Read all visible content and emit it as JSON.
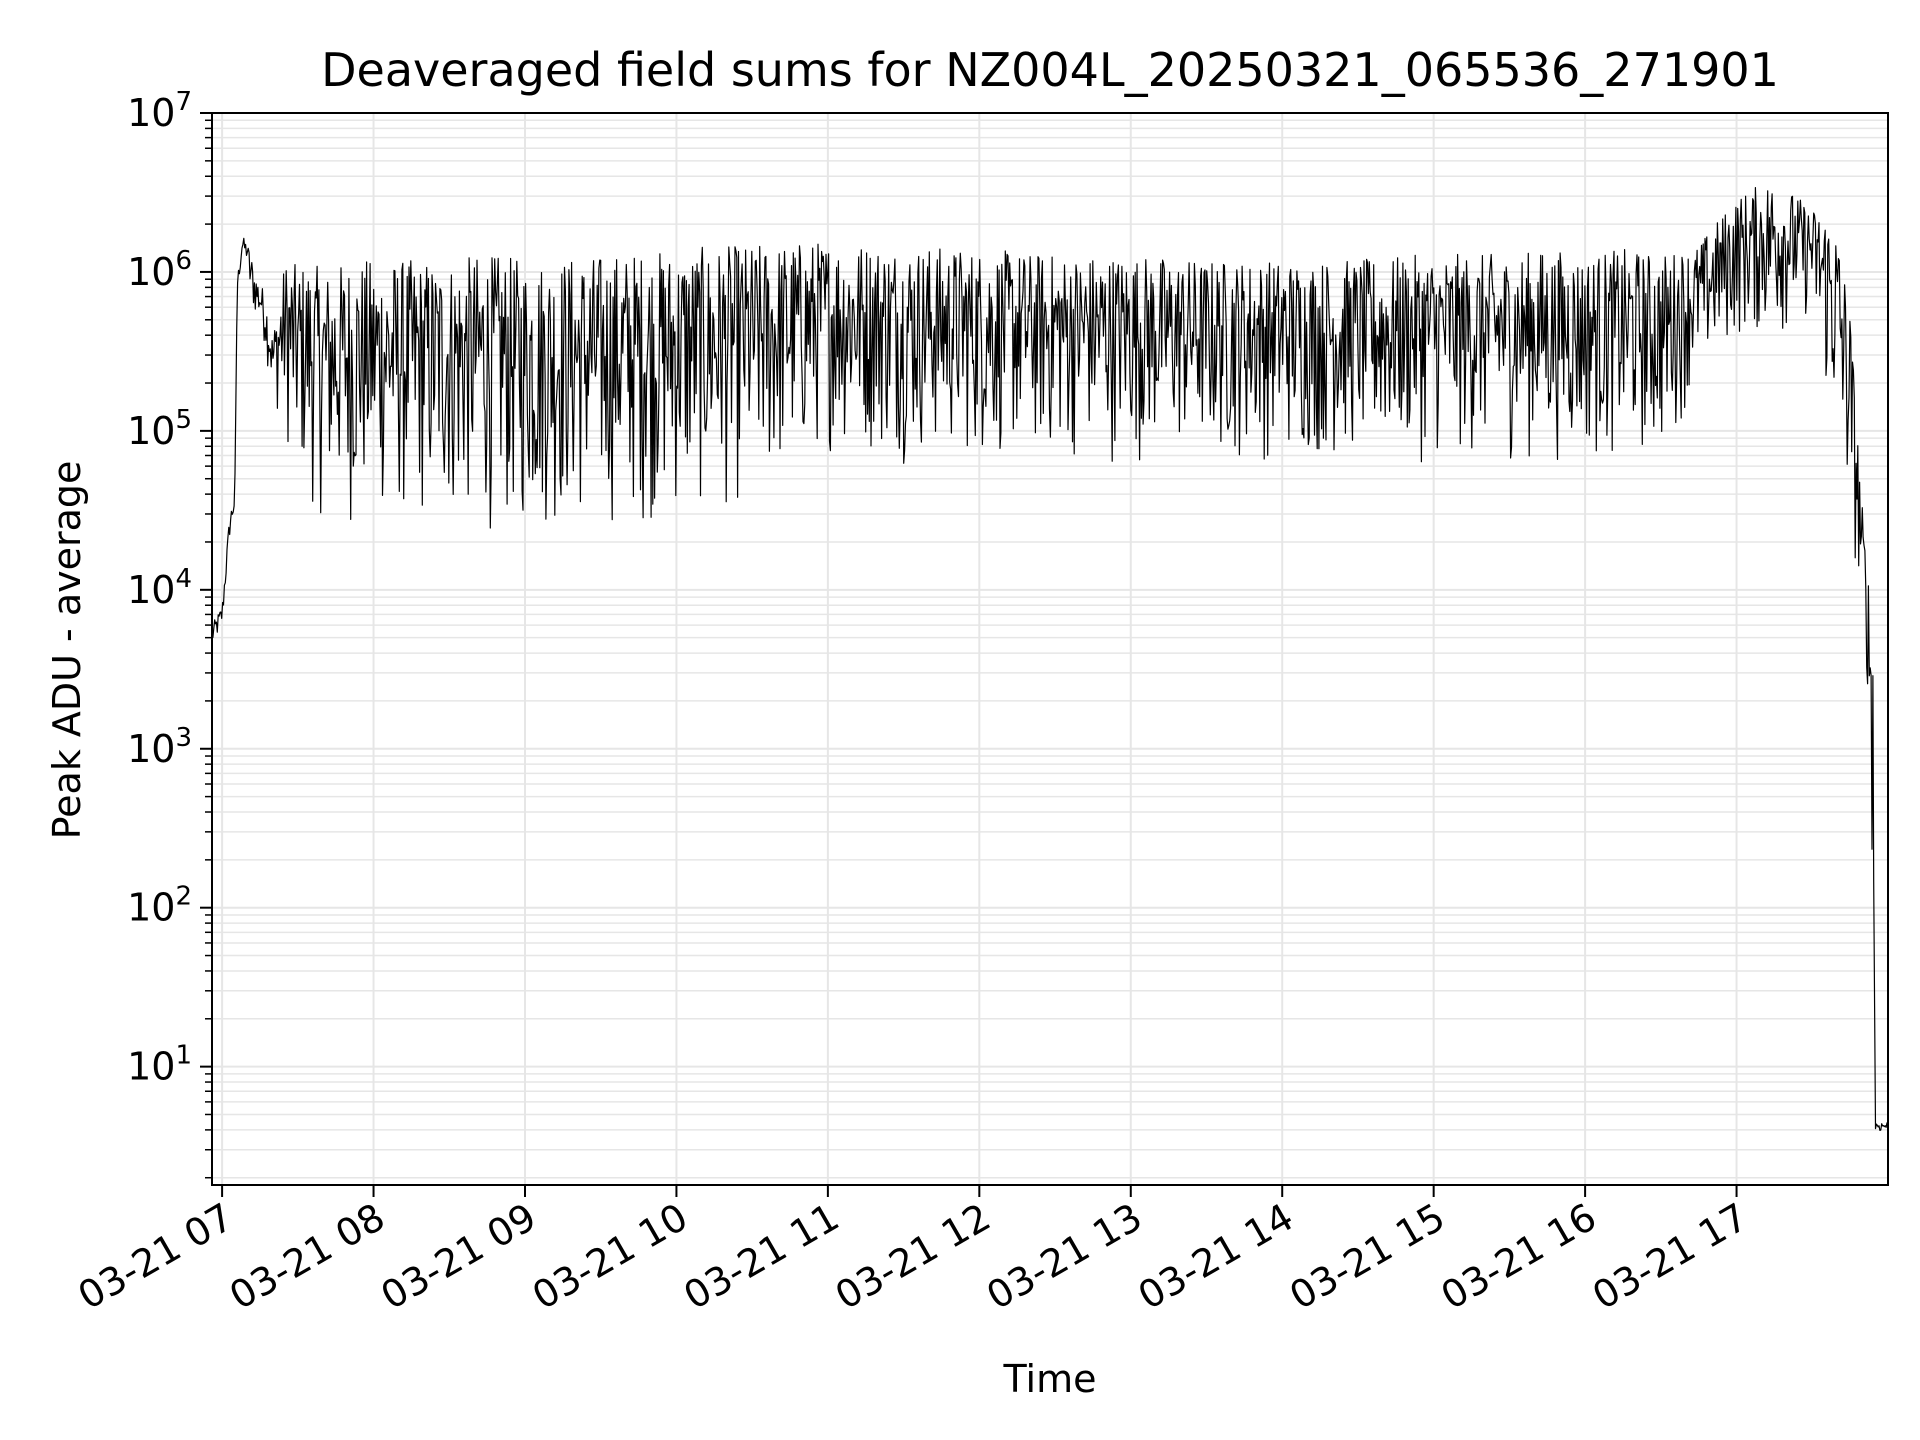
{
  "chart_data": {
    "type": "line",
    "title": "Deaveraged field sums for NZ004L_20250321_065536_271901",
    "xlabel": "Time",
    "ylabel": "Peak ADU - average",
    "yscale": "log",
    "ylim": [
      1.8,
      10000000
    ],
    "xlim": [
      "2025-03-21 06:56",
      "2025-03-21 18:00"
    ],
    "grid": true,
    "grid_minor": true,
    "line_color": "#000000",
    "grid_color": "#e6e6e6",
    "x_tick_labels": [
      "03-21 07",
      "03-21 08",
      "03-21 09",
      "03-21 10",
      "03-21 11",
      "03-21 12",
      "03-21 13",
      "03-21 14",
      "03-21 15",
      "03-21 16",
      "03-21 17"
    ],
    "y_ticks": [
      {
        "value": 10,
        "base": "10",
        "exp": "1"
      },
      {
        "value": 100,
        "base": "10",
        "exp": "2"
      },
      {
        "value": 1000,
        "base": "10",
        "exp": "3"
      },
      {
        "value": 10000,
        "base": "10",
        "exp": "4"
      },
      {
        "value": 100000,
        "base": "10",
        "exp": "5"
      },
      {
        "value": 1000000,
        "base": "10",
        "exp": "6"
      },
      {
        "value": 10000000,
        "base": "10",
        "exp": "7"
      }
    ],
    "series": [
      {
        "x": [
          "2025-03-21 06:56",
          "2025-03-21 07:00",
          "2025-03-21 07:03",
          "2025-03-21 07:05",
          "2025-03-21 07:06",
          "2025-03-21 07:08",
          "2025-03-21 07:10",
          "2025-03-21 07:11",
          "2025-03-21 07:13",
          "2025-03-21 07:16",
          "2025-03-21 07:18",
          "2025-03-21 07:20",
          "2025-03-21 07:25",
          "2025-03-21 07:30",
          "2025-03-21 07:35",
          "2025-03-21 07:40",
          "2025-03-21 07:45",
          "2025-03-21 07:50",
          "2025-03-21 08:00",
          "2025-03-21 08:15",
          "2025-03-21 08:30",
          "2025-03-21 08:45",
          "2025-03-21 09:00",
          "2025-03-21 09:30",
          "2025-03-21 10:00",
          "2025-03-21 10:30",
          "2025-03-21 11:00",
          "2025-03-21 11:30",
          "2025-03-21 12:00",
          "2025-03-21 12:30",
          "2025-03-21 13:00",
          "2025-03-21 13:30",
          "2025-03-21 14:00",
          "2025-03-21 14:30",
          "2025-03-21 15:00",
          "2025-03-21 15:30",
          "2025-03-21 15:45",
          "2025-03-21 16:00",
          "2025-03-21 16:15",
          "2025-03-21 16:30",
          "2025-03-21 16:45",
          "2025-03-21 17:00",
          "2025-03-21 17:15",
          "2025-03-21 17:30",
          "2025-03-21 17:35",
          "2025-03-21 17:40",
          "2025-03-21 17:45",
          "2025-03-21 17:48",
          "2025-03-21 17:50",
          "2025-03-21 17:52",
          "2025-03-21 17:54",
          "2025-03-21 17:55",
          "2025-03-21 17:57",
          "2025-03-21 18:00"
        ],
        "low": [
          4000,
          5500,
          20000,
          30000,
          700000,
          1200000,
          1100000,
          600000,
          500000,
          400000,
          250000,
          150000,
          80000,
          40000,
          30000,
          25000,
          25000,
          22000,
          25000,
          22000,
          22000,
          21000,
          20000,
          22000,
          25000,
          30000,
          70000,
          60000,
          60000,
          60000,
          60000,
          60000,
          60000,
          60000,
          60000,
          60000,
          60000,
          60000,
          60000,
          60000,
          200000,
          350000,
          350000,
          500000,
          150000,
          60000,
          20000,
          10000,
          5000,
          2000,
          100,
          3.8,
          3.8,
          3.8
        ],
        "high": [
          6000,
          8000,
          30000,
          40000,
          900000,
          1700000,
          1500000,
          1400000,
          1000000,
          800000,
          600000,
          400000,
          1200000,
          1100000,
          1200000,
          1000000,
          1100000,
          1200000,
          1200000,
          1200000,
          1200000,
          1300000,
          1200000,
          1300000,
          1400000,
          1500000,
          1600000,
          1500000,
          1400000,
          1300000,
          1300000,
          1200000,
          1200000,
          1200000,
          1300000,
          1300000,
          1400000,
          1300000,
          1400000,
          1300000,
          1500000,
          3000000,
          4000000,
          2500000,
          2500000,
          2000000,
          600000,
          100000,
          30000,
          14000,
          6000,
          4.5,
          4.5,
          4.5
        ]
      }
    ]
  }
}
